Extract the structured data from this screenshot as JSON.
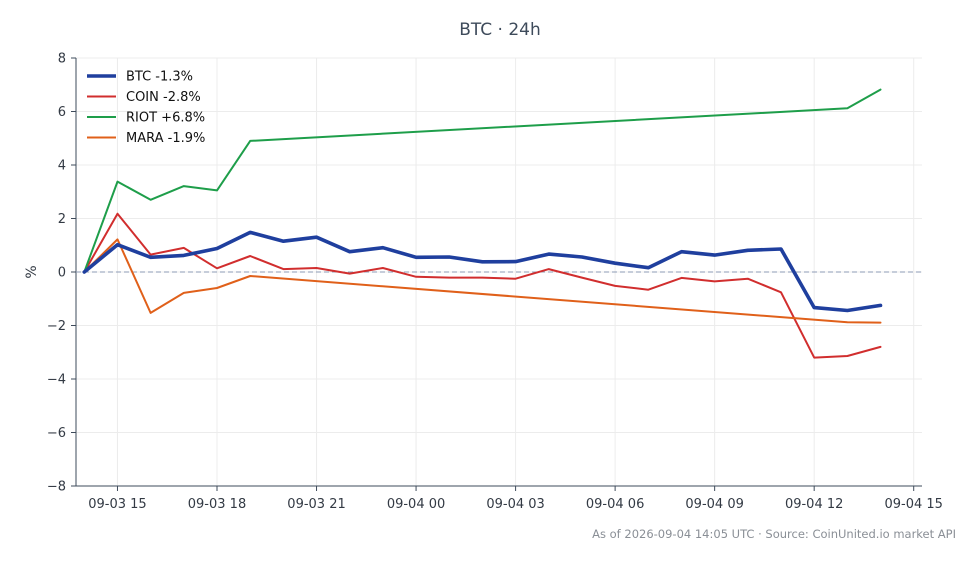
{
  "chart_data": {
    "type": "line",
    "title": "BTC · 24h",
    "xlabel": "",
    "ylabel": "%",
    "ylim": [
      -8,
      8
    ],
    "yticks": [
      -8,
      -6,
      -4,
      -2,
      0,
      2,
      4,
      6,
      8
    ],
    "yticks_labels": [
      "−8",
      "−6",
      "−4",
      "−2",
      "0",
      "2",
      "4",
      "6",
      "8"
    ],
    "xlim": [
      "2026-09-03 13:45",
      "2026-09-04 15:15"
    ],
    "xticks": [
      "2026-09-03 15:00",
      "2026-09-03 18:00",
      "2026-09-03 21:00",
      "2026-09-04 00:00",
      "2026-09-04 03:00",
      "2026-09-04 06:00",
      "2026-09-04 09:00",
      "2026-09-04 12:00",
      "2026-09-04 15:00"
    ],
    "xticks_labels": [
      "09-03 15",
      "09-03 18",
      "09-03 21",
      "09-04 00",
      "09-04 03",
      "09-04 06",
      "09-04 09",
      "09-04 12",
      "09-04 15"
    ],
    "x": [
      "2026-09-03 14:00",
      "2026-09-03 15:00",
      "2026-09-03 16:00",
      "2026-09-03 17:00",
      "2026-09-03 18:00",
      "2026-09-03 19:00",
      "2026-09-03 20:00",
      "2026-09-03 21:00",
      "2026-09-03 22:00",
      "2026-09-03 23:00",
      "2026-09-04 00:00",
      "2026-09-04 01:00",
      "2026-09-04 02:00",
      "2026-09-04 03:00",
      "2026-09-04 04:00",
      "2026-09-04 05:00",
      "2026-09-04 06:00",
      "2026-09-04 07:00",
      "2026-09-04 08:00",
      "2026-09-04 09:00",
      "2026-09-04 10:00",
      "2026-09-04 11:00",
      "2026-09-04 12:00",
      "2026-09-04 13:00",
      "2026-09-04 14:00"
    ],
    "grid": true,
    "reference_line": 0,
    "legend_position": "top-left",
    "series": [
      {
        "name": "BTC -1.3%",
        "color": "#1f3f9e",
        "values": [
          0,
          1.02,
          0.55,
          0.62,
          0.88,
          1.48,
          1.15,
          1.3,
          0.76,
          0.91,
          0.55,
          0.56,
          0.38,
          0.39,
          0.67,
          0.56,
          0.33,
          0.16,
          0.76,
          0.63,
          0.81,
          0.86,
          -1.33,
          -1.44,
          -1.25
        ]
      },
      {
        "name": "COIN -2.8%",
        "color": "#d12e2e",
        "values": [
          0,
          2.18,
          0.65,
          0.9,
          0.14,
          0.6,
          0.11,
          0.15,
          -0.06,
          0.15,
          -0.18,
          -0.21,
          -0.21,
          -0.25,
          0.11,
          -0.21,
          -0.52,
          -0.66,
          -0.22,
          -0.35,
          -0.25,
          -0.76,
          -3.2,
          -3.14,
          -2.8
        ]
      },
      {
        "name": "RIOT +6.8%",
        "color": "#1e9e4a",
        "values": [
          0,
          3.38,
          2.7,
          3.21,
          3.05,
          4.9,
          null,
          null,
          null,
          null,
          null,
          null,
          null,
          null,
          null,
          null,
          null,
          null,
          null,
          null,
          null,
          null,
          null,
          6.12,
          6.82
        ]
      },
      {
        "name": "MARA -1.9%",
        "color": "#e0601a",
        "values": [
          0,
          1.22,
          -1.53,
          -0.78,
          -0.6,
          -0.15,
          null,
          null,
          null,
          null,
          null,
          null,
          null,
          null,
          null,
          null,
          null,
          null,
          null,
          null,
          null,
          null,
          null,
          -1.88,
          -1.89
        ]
      }
    ]
  },
  "footer": "As of 2026-09-04 14:05 UTC · Source: CoinUnited.io market API"
}
